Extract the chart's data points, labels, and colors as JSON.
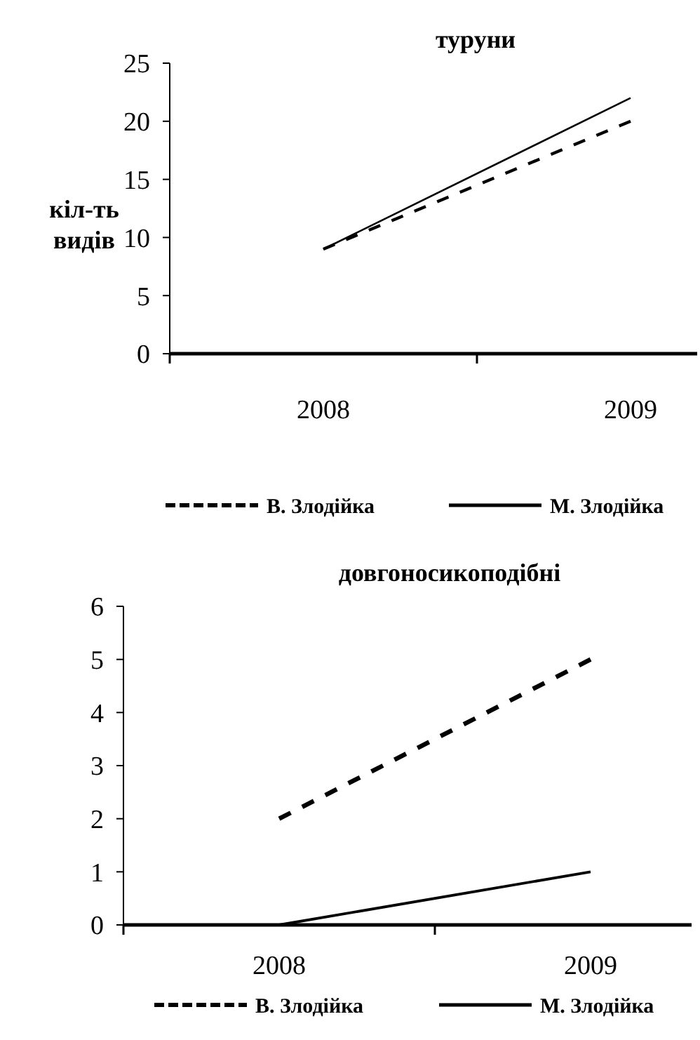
{
  "chart_data": [
    {
      "type": "line",
      "title": "туруни",
      "ylabel": "кіл-ть видів",
      "categories": [
        "2008",
        "2009"
      ],
      "ylim": [
        0,
        25
      ],
      "yticks": [
        0,
        5,
        10,
        15,
        20,
        25
      ],
      "legend": "bottom",
      "marker": "none",
      "series": [
        {
          "name": "В. Злодійка",
          "color": "#000000",
          "line_style": "dashed",
          "values": [
            9,
            20
          ]
        },
        {
          "name": "М. Злодійка",
          "color": "#000000",
          "line_style": "solid",
          "values": [
            9,
            22
          ]
        }
      ]
    },
    {
      "type": "line",
      "title": "довгоносикоподібні",
      "categories": [
        "2008",
        "2009"
      ],
      "ylim": [
        0,
        6
      ],
      "yticks": [
        0,
        1,
        2,
        3,
        4,
        5,
        6
      ],
      "legend": "bottom",
      "marker": "none",
      "series": [
        {
          "name": "В. Злодійка",
          "color": "#000000",
          "line_style": "dashed",
          "values": [
            2,
            5
          ]
        },
        {
          "name": "М. Злодійка",
          "color": "#000000",
          "line_style": "solid",
          "values": [
            0,
            1
          ]
        }
      ]
    }
  ]
}
